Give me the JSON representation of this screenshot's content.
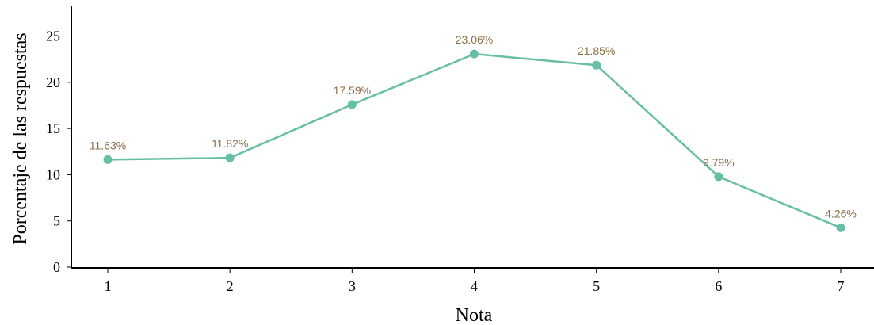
{
  "chart_data": {
    "type": "line",
    "title": "",
    "xlabel": "Nota",
    "ylabel": "Porcentaje de las respuestas",
    "categories": [
      "1",
      "2",
      "3",
      "4",
      "5",
      "6",
      "7"
    ],
    "yticks": [
      "0",
      "5",
      "10",
      "15",
      "20",
      "25"
    ],
    "ylim": [
      -1.2,
      26.5
    ],
    "values": [
      11.63,
      11.82,
      17.59,
      23.06,
      21.85,
      9.79,
      4.26
    ],
    "data_labels": [
      "11.63%",
      "11.82%",
      "17.59%",
      "23.06%",
      "21.85%",
      "9.79%",
      "4.26%"
    ],
    "grid": false,
    "legend": "none",
    "colors": {
      "line": "#66bfa3",
      "label": "#8b6f47",
      "axis": "#000000"
    }
  }
}
